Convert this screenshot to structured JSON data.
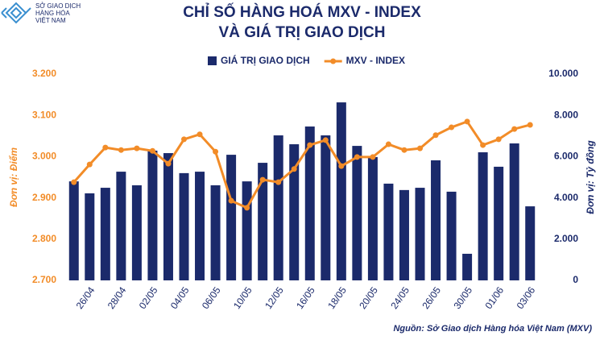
{
  "logo": {
    "lines": [
      "SỞ GIAO DỊCH",
      "HÀNG HÓA",
      "VIỆT NAM"
    ]
  },
  "chart_data": {
    "type": "combo",
    "title": [
      "CHỈ SỐ HÀNG HOÁ MXV - INDEX",
      "VÀ GIÁ TRỊ GIAO DỊCH"
    ],
    "categories": [
      null,
      "26/04",
      null,
      "28/04",
      null,
      "02/05",
      null,
      "04/05",
      null,
      "06/05",
      null,
      "10/05",
      null,
      "12/05",
      null,
      "16/05",
      null,
      "18/05",
      null,
      "20/05",
      null,
      "24/05",
      null,
      "26/05",
      null,
      "30/05",
      null,
      "01/06",
      null,
      "03/06"
    ],
    "series": [
      {
        "name": "GIÁ TRỊ GIAO DỊCH",
        "type": "bar",
        "axis": "y2",
        "color": "#1b2a6b",
        "values": [
          4800,
          4220,
          4490,
          5270,
          4610,
          6290,
          6170,
          5200,
          5270,
          4610,
          6090,
          4800,
          5700,
          7030,
          6600,
          7460,
          7030,
          8630,
          6520,
          5980,
          4690,
          4380,
          4490,
          5820,
          4300,
          1290,
          6210,
          5510,
          6640,
          3590
        ]
      },
      {
        "name": "MXV - INDEX",
        "type": "line",
        "color": "#f28c28",
        "values": [
          2938,
          2981,
          3022,
          3016,
          3020,
          3014,
          2983,
          3042,
          3054,
          3012,
          2893,
          2876,
          2944,
          2938,
          2970,
          3028,
          3040,
          2977,
          2999,
          2999,
          3030,
          3016,
          3020,
          3052,
          3071,
          3085,
          3028,
          3042,
          3067,
          3077
        ]
      }
    ],
    "ylim": [
      2700,
      3200
    ],
    "yticks": [
      {
        "value": 2700,
        "label": "2.700"
      },
      {
        "value": 2800,
        "label": "2.800"
      },
      {
        "value": 2900,
        "label": "2.900"
      },
      {
        "value": 3000,
        "label": "3.000"
      },
      {
        "value": 3100,
        "label": "3.100"
      },
      {
        "value": 3200,
        "label": "3.200"
      }
    ],
    "y2lim": [
      0,
      10000
    ],
    "y2ticks": [
      0,
      {
        "value": 2000,
        "label": "2.000"
      },
      {
        "value": 4000,
        "label": "4.000"
      },
      {
        "value": 6000,
        "label": "6.000"
      },
      {
        "value": 8000,
        "label": "8.000"
      },
      {
        "value": 10000,
        "label": "10.000"
      }
    ],
    "ylabel": "Đơn vị: Điểm",
    "y2label": "Đơn vị: Tỷ đồng",
    "source": "Nguồn: Sở Giao dịch Hàng hóa Việt Nam (MXV)",
    "grid": false
  }
}
